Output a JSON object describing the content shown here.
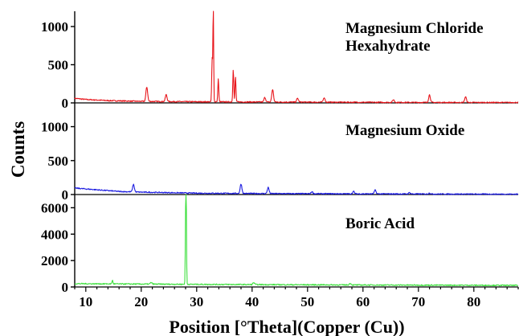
{
  "chart_data": {
    "type": "line",
    "xlabel": "Position [°Theta](Copper (Cu))",
    "ylabel": "Counts",
    "xlim": [
      8,
      88
    ],
    "xticks": [
      10,
      20,
      30,
      40,
      50,
      60,
      70,
      80
    ],
    "panels": [
      {
        "name": "Magnesium Chloride Hexahydrate",
        "label_lines": [
          "Magnesium Chloride",
          "Hexahydrate"
        ],
        "color": "#e8151b",
        "ylim": [
          0,
          1200
        ],
        "yticks": [
          0,
          500,
          1000
        ],
        "baseline": [
          [
            8,
            60
          ],
          [
            10,
            45
          ],
          [
            14,
            30
          ],
          [
            20,
            20
          ],
          [
            30,
            15
          ],
          [
            40,
            12
          ],
          [
            50,
            10
          ],
          [
            60,
            8
          ],
          [
            70,
            6
          ],
          [
            80,
            5
          ],
          [
            88,
            5
          ]
        ],
        "peaks": [
          [
            21.0,
            190
          ],
          [
            24.5,
            90
          ],
          [
            32.8,
            570
          ],
          [
            33.0,
            1250
          ],
          [
            33.9,
            300
          ],
          [
            36.6,
            430
          ],
          [
            37.0,
            330
          ],
          [
            42.3,
            60
          ],
          [
            43.7,
            165
          ],
          [
            48.2,
            50
          ],
          [
            53.0,
            60
          ],
          [
            65.5,
            35
          ],
          [
            72.0,
            100
          ],
          [
            78.5,
            75
          ]
        ]
      },
      {
        "name": "Magnesium Oxide",
        "label_lines": [
          "Magnesium Oxide"
        ],
        "color": "#1b1be0",
        "ylim": [
          0,
          1350
        ],
        "yticks": [
          0,
          500,
          1000
        ],
        "baseline": [
          [
            8,
            95
          ],
          [
            12,
            70
          ],
          [
            16,
            45
          ],
          [
            20,
            35
          ],
          [
            30,
            20
          ],
          [
            40,
            15
          ],
          [
            50,
            12
          ],
          [
            60,
            10
          ],
          [
            70,
            8
          ],
          [
            80,
            6
          ],
          [
            88,
            5
          ]
        ],
        "peaks": [
          [
            18.6,
            110
          ],
          [
            38.0,
            140
          ],
          [
            42.9,
            90
          ],
          [
            50.8,
            30
          ],
          [
            58.3,
            35
          ],
          [
            62.2,
            55
          ],
          [
            68.4,
            20
          ],
          [
            72.0,
            15
          ]
        ]
      },
      {
        "name": "Boric Acid",
        "label_lines": [
          "Boric Acid"
        ],
        "color": "#3de03d",
        "ylim": [
          0,
          7000
        ],
        "yticks": [
          0,
          2000,
          4000,
          6000
        ],
        "baseline": [
          [
            8,
            250
          ],
          [
            20,
            220
          ],
          [
            30,
            200
          ],
          [
            40,
            180
          ],
          [
            60,
            150
          ],
          [
            80,
            130
          ],
          [
            88,
            120
          ]
        ],
        "peaks": [
          [
            14.8,
            280
          ],
          [
            21.8,
            120
          ],
          [
            28.0,
            3800
          ],
          [
            28.1,
            7000
          ],
          [
            40.3,
            150
          ],
          [
            57.7,
            120
          ]
        ]
      }
    ]
  }
}
